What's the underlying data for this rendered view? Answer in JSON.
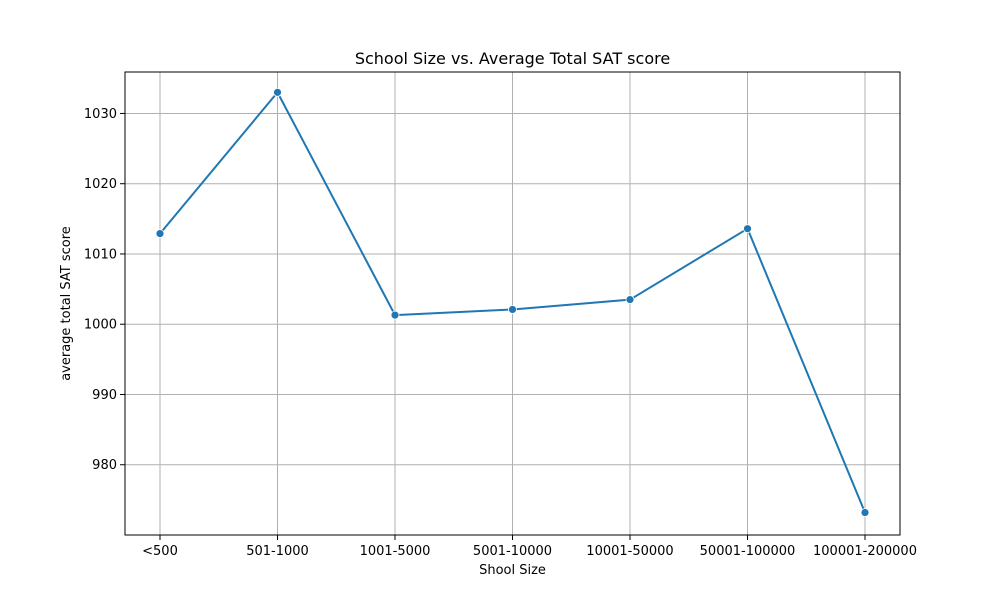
{
  "chart_data": {
    "type": "line",
    "title": "School Size vs. Average Total SAT score",
    "xlabel": "Shool Size",
    "ylabel": "average total SAT score",
    "categories": [
      "<500",
      "501-1000",
      "1001-5000",
      "5001-10000",
      "10001-50000",
      "50001-100000",
      "100001-200000"
    ],
    "series": [
      {
        "values": [
          1012.9,
          1033.0,
          1001.3,
          1002.1,
          1003.5,
          1013.6,
          973.2
        ]
      }
    ],
    "ylim": [
      970.0,
      1035.9
    ],
    "yticks": [
      980,
      990,
      1000,
      1010,
      1020,
      1030
    ],
    "grid": true,
    "marker": "circle",
    "colors": {
      "line": "#1f77b4",
      "grid": "#b0b0b0"
    }
  }
}
